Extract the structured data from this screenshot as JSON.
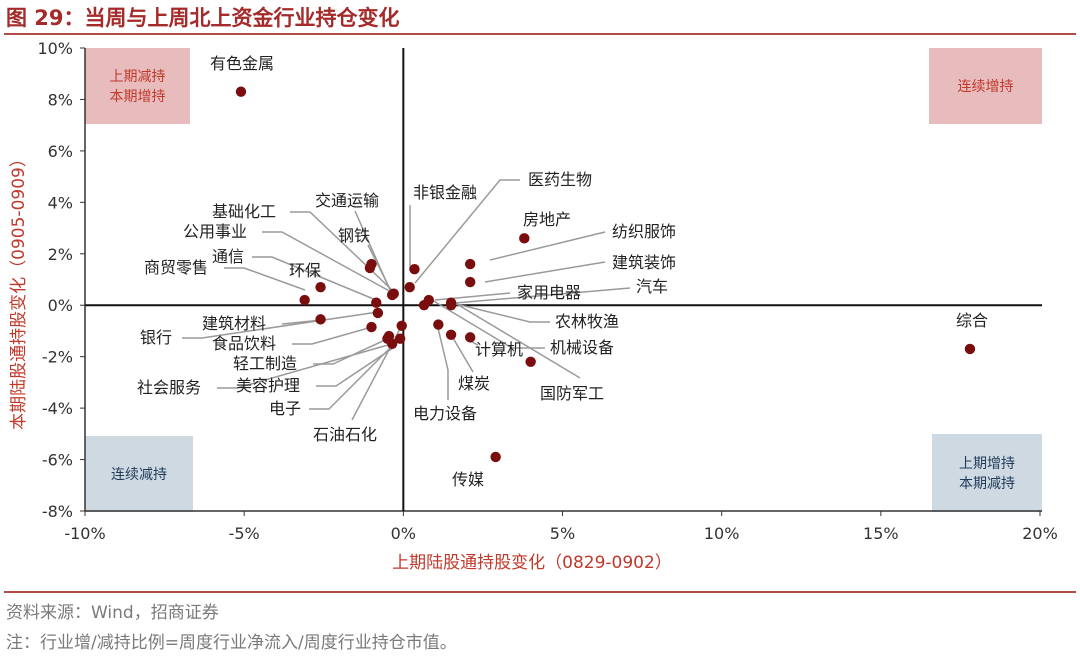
{
  "title": "图 29：当周与上周北上资金行业持仓变化",
  "source": "资料来源：Wind，招商证券",
  "note": "注：行业增/减持比例=周度行业净流入/周度行业持仓市值。",
  "chart_data": {
    "type": "scatter",
    "xlabel": "上期陆股通持股变化（0829-0902）",
    "ylabel": "本期陆股通持股变化（0905-0909）",
    "xlim": [
      -10,
      20
    ],
    "ylim": [
      -8,
      10
    ],
    "x_ticks": [
      -10,
      -5,
      0,
      5,
      10,
      15,
      20
    ],
    "y_ticks": [
      -8,
      -6,
      -4,
      -2,
      0,
      2,
      4,
      6,
      8,
      10
    ],
    "x_tick_labels": [
      "-10%",
      "-5%",
      "0%",
      "5%",
      "10%",
      "15%",
      "20%"
    ],
    "y_tick_labels": [
      "-8%",
      "-6%",
      "-4%",
      "-2%",
      "0%",
      "2%",
      "4%",
      "6%",
      "8%",
      "10%"
    ],
    "quadrant_labels": [
      {
        "text": [
          "上期减持",
          "本期增持"
        ],
        "position": "top-left",
        "color": "#e8bcbc",
        "text_color": "#c0392b"
      },
      {
        "text": [
          "连续增持"
        ],
        "position": "top-right",
        "color": "#e8bcbc",
        "text_color": "#c0392b"
      },
      {
        "text": [
          "连续减持"
        ],
        "position": "bottom-left",
        "color": "#cfd9e2",
        "text_color": "#1f3b5a"
      },
      {
        "text": [
          "上期增持",
          "本期减持"
        ],
        "position": "bottom-right",
        "color": "#cfd9e2",
        "text_color": "#1f3b5a"
      }
    ],
    "marker_color": "#7a0d0d",
    "points": [
      {
        "name": "有色金属",
        "x": -5.1,
        "y": 8.3
      },
      {
        "name": "综合",
        "x": 17.8,
        "y": -1.7
      },
      {
        "name": "传媒",
        "x": 2.9,
        "y": -5.9
      },
      {
        "name": "房地产",
        "x": 3.8,
        "y": 2.6
      },
      {
        "name": "纺织服饰",
        "x": 2.1,
        "y": 1.6
      },
      {
        "name": "建筑装饰",
        "x": 2.1,
        "y": 0.9
      },
      {
        "name": "汽车",
        "x": 1.5,
        "y": 0.1
      },
      {
        "name": "家用电器",
        "x": 0.8,
        "y": 0.2
      },
      {
        "name": "医药生物",
        "x": 0.2,
        "y": 0.7
      },
      {
        "name": "非银金融",
        "x": 0.35,
        "y": 1.4
      },
      {
        "name": "交通运输",
        "x": -1.0,
        "y": 1.6
      },
      {
        "name": "钢铁",
        "x": -1.05,
        "y": 1.45
      },
      {
        "name": "基础化工",
        "x": -0.3,
        "y": 0.45
      },
      {
        "name": "公用事业",
        "x": -0.35,
        "y": 0.4
      },
      {
        "name": "环保",
        "x": -2.6,
        "y": 0.7
      },
      {
        "name": "商贸零售",
        "x": -3.1,
        "y": 0.2
      },
      {
        "name": "通信",
        "x": -0.85,
        "y": 0.1
      },
      {
        "name": "建筑材料",
        "x": -2.6,
        "y": -0.55
      },
      {
        "name": "银行",
        "x": -0.8,
        "y": -0.3
      },
      {
        "name": "食品饮料",
        "x": -1.0,
        "y": -0.85
      },
      {
        "name": "轻工制造",
        "x": -0.5,
        "y": -1.3
      },
      {
        "name": "社会服务",
        "x": -0.45,
        "y": -1.2
      },
      {
        "name": "美容护理",
        "x": -0.35,
        "y": -1.5
      },
      {
        "name": "电子",
        "x": -0.1,
        "y": -1.3
      },
      {
        "name": "石油石化",
        "x": -0.05,
        "y": -0.8
      },
      {
        "name": "电力设备",
        "x": 1.1,
        "y": -0.75
      },
      {
        "name": "煤炭",
        "x": 1.5,
        "y": -1.15
      },
      {
        "name": "计算机",
        "x": 2.1,
        "y": -1.25
      },
      {
        "name": "机械设备",
        "x": 0.65,
        "y": 0.0
      },
      {
        "name": "农林牧渔",
        "x": 1.5,
        "y": 0.0
      },
      {
        "name": "国防军工",
        "x": 4.0,
        "y": -2.2
      }
    ]
  }
}
